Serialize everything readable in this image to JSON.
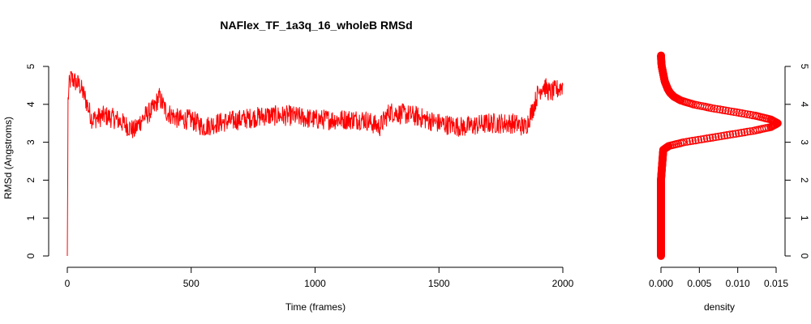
{
  "chart_data": [
    {
      "type": "line",
      "title": "NAFlex_TF_1a3q_16_wholeB RMSd",
      "xlabel": "Time (frames)",
      "ylabel": "RMSd (Angstroms)",
      "xlim": [
        0,
        2000
      ],
      "ylim": [
        0,
        5
      ],
      "x_ticks": [
        "0",
        "500",
        "1000",
        "1500",
        "2000"
      ],
      "y_ticks": [
        "0",
        "1",
        "2",
        "3",
        "4",
        "5"
      ],
      "grid": false,
      "color": "#ff0000",
      "series": [
        {
          "x": [
            0,
            3,
            8,
            15,
            30,
            50,
            70,
            90,
            100,
            150,
            200,
            250,
            270,
            300,
            350,
            370,
            400,
            450,
            500,
            550,
            600,
            700,
            800,
            900,
            1000,
            1100,
            1200,
            1260,
            1300,
            1400,
            1500,
            1600,
            1700,
            1800,
            1850,
            1880,
            1900,
            1920,
            1950,
            1980,
            2000
          ],
          "y": [
            0.0,
            4.1,
            4.5,
            4.7,
            4.6,
            4.5,
            4.2,
            3.8,
            3.6,
            3.7,
            3.6,
            3.4,
            3.3,
            3.6,
            3.9,
            4.2,
            3.8,
            3.6,
            3.6,
            3.4,
            3.5,
            3.6,
            3.7,
            3.7,
            3.6,
            3.6,
            3.6,
            3.4,
            3.8,
            3.7,
            3.5,
            3.4,
            3.5,
            3.5,
            3.4,
            3.9,
            4.3,
            4.5,
            4.3,
            4.4,
            4.5
          ]
        }
      ]
    },
    {
      "type": "scatter",
      "xlabel": "density",
      "ylabel": "",
      "xlim": [
        0,
        0.015
      ],
      "ylim": [
        0,
        5
      ],
      "x_ticks": [
        "0.000",
        "0.005",
        "0.010",
        "0.015"
      ],
      "y_ticks": [
        "0",
        "1",
        "2",
        "3",
        "4",
        "5"
      ],
      "color": "#ff0000",
      "density_curve": {
        "rmsd": [
          0.0,
          1.0,
          2.0,
          2.8,
          2.9,
          3.0,
          3.1,
          3.2,
          3.3,
          3.4,
          3.5,
          3.6,
          3.7,
          3.8,
          3.9,
          4.0,
          4.1,
          4.2,
          4.3,
          4.4,
          4.5,
          4.6,
          4.7,
          4.8,
          4.9,
          5.0,
          5.1,
          5.2,
          5.3
        ],
        "density": [
          0.0,
          0.0,
          0.0,
          0.0003,
          0.001,
          0.003,
          0.006,
          0.009,
          0.012,
          0.0143,
          0.0152,
          0.0143,
          0.0123,
          0.0095,
          0.0066,
          0.0042,
          0.0026,
          0.0017,
          0.0012,
          0.0009,
          0.0007,
          0.0005,
          0.0004,
          0.0003,
          0.0002,
          0.0001,
          5e-05,
          2e-05,
          1e-05
        ]
      }
    }
  ]
}
